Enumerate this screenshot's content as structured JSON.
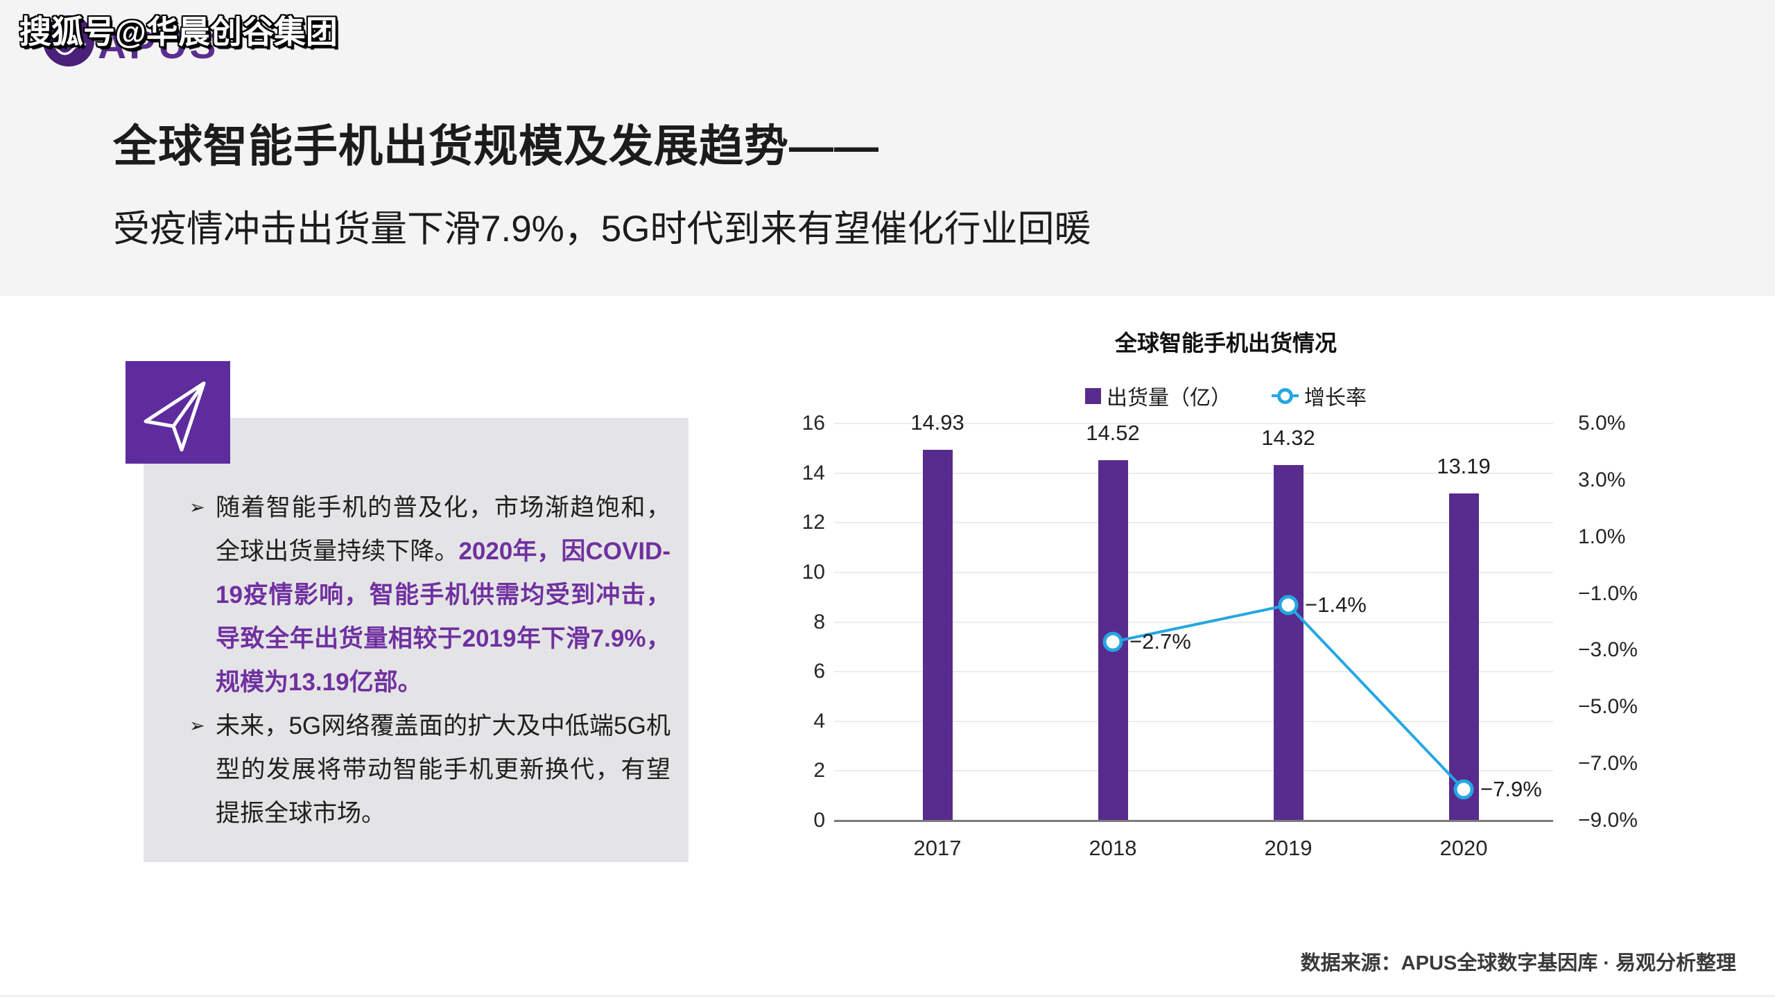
{
  "watermark": "搜狐号@华晨创谷集团",
  "logo": {
    "brand": "APUS"
  },
  "header": {
    "title": "全球智能手机出货规模及发展趋势——",
    "subtitle": "受疫情冲击出货量下滑7.9%，5G时代到来有望催化行业回暖"
  },
  "insights": {
    "bullet_char": "➢",
    "bullet1_black": "随着智能手机的普及化，市场渐趋饱和，全球出货量持续下降。",
    "bullet1_purple": "2020年，因COVID-19疫情影响，智能手机供需均受到冲击，导致全年出货量相较于2019年下滑7.9%，规模为13.19亿部。",
    "bullet2": "未来，5G网络覆盖面的扩大及中低端5G机型的发展将带动智能手机更新换代，有望提振全球市场。"
  },
  "chart_data": {
    "type": "bar",
    "combo": "bar+line dual axis",
    "title": "全球智能手机出货情况",
    "categories": [
      "2017",
      "2018",
      "2019",
      "2020"
    ],
    "series": [
      {
        "name": "出货量（亿）",
        "chart_type": "bar",
        "axis": "left",
        "values": [
          14.93,
          14.52,
          14.32,
          13.19
        ],
        "data_labels": [
          "14.93",
          "14.52",
          "14.32",
          "13.19"
        ],
        "color": "#582B8E"
      },
      {
        "name": "增长率",
        "chart_type": "line",
        "axis": "right",
        "values": [
          null,
          -2.7,
          -1.4,
          -7.9
        ],
        "data_labels": [
          "",
          "−2.7%",
          "−1.4%",
          "−7.9%"
        ],
        "color": "#24A7E1"
      }
    ],
    "left_axis": {
      "min": 0,
      "max": 16,
      "step": 2,
      "tick_labels": [
        "16",
        "14",
        "12",
        "10",
        "8",
        "6",
        "4",
        "2",
        "0"
      ]
    },
    "right_axis": {
      "min": -9.0,
      "max": 5.0,
      "step": 2.0,
      "tick_labels": [
        "5.0%",
        "3.0%",
        "1.0%",
        "−1.0%",
        "−3.0%",
        "−5.0%",
        "−7.0%",
        "−9.0%"
      ]
    },
    "grid": true,
    "legend_position": "top"
  },
  "footer": {
    "source": "数据来源：APUS全球数字基因库 · 易观分析整理"
  },
  "colors": {
    "bar_purple": "#582B8E",
    "icon_tile_purple": "#5E2C9C",
    "logo_circle_purple": "#4A2078",
    "brand_text_purple": "#5C2D90",
    "highlight_text_purple": "#7030A0",
    "line_cyan": "#24A7E1",
    "header_bg": "#F4F4F5",
    "panel_bg": "#E4E4E6",
    "gridline": "#ECECEC",
    "axis_line": "#7A7A7A"
  }
}
